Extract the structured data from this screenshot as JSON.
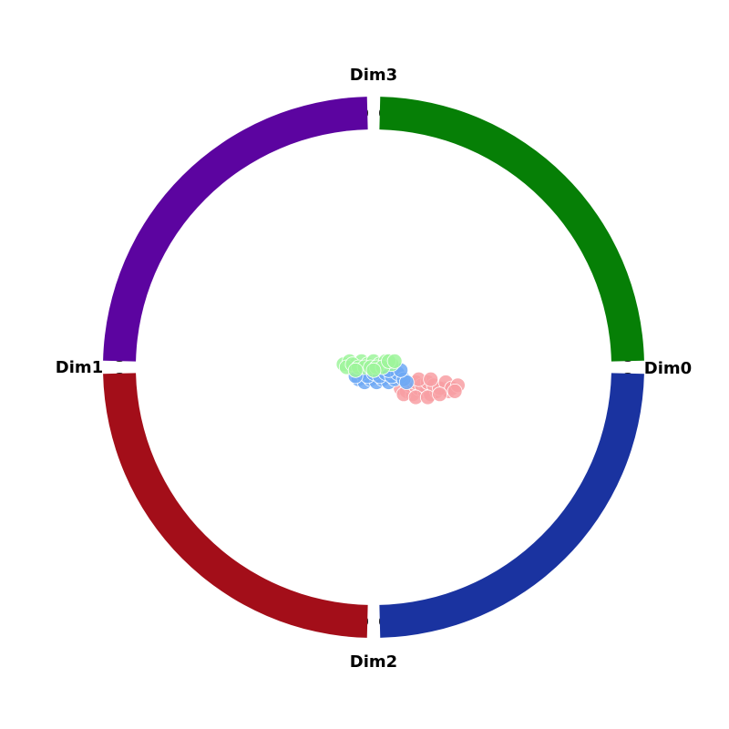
{
  "chart_data": {
    "type": "scatter",
    "title": "",
    "xlabel": "",
    "ylabel": "",
    "dimensions": [
      {
        "label": "Dim0",
        "color": "#067f06"
      },
      {
        "label": "Dim1",
        "color": "#5c04a0"
      },
      {
        "label": "Dim2",
        "color": "#a30e19"
      },
      {
        "label": "Dim3",
        "color": "#1a33a0"
      }
    ],
    "series": [
      {
        "color": "#f89fa3",
        "points": [
          [
            0.09,
            -0.07
          ],
          [
            0.11,
            -0.08
          ],
          [
            0.13,
            -0.09
          ],
          [
            0.15,
            -0.07
          ],
          [
            0.17,
            -0.08
          ],
          [
            0.19,
            -0.09
          ],
          [
            0.21,
            -0.08
          ],
          [
            0.23,
            -0.07
          ],
          [
            0.25,
            -0.08
          ],
          [
            0.12,
            -0.06
          ],
          [
            0.14,
            -0.05
          ],
          [
            0.16,
            -0.06
          ],
          [
            0.18,
            -0.05
          ],
          [
            0.2,
            -0.06
          ],
          [
            0.22,
            -0.07
          ],
          [
            0.24,
            -0.05
          ],
          [
            0.26,
            -0.07
          ],
          [
            0.1,
            -0.09
          ],
          [
            0.14,
            -0.1
          ],
          [
            0.18,
            -0.1
          ],
          [
            0.22,
            -0.09
          ],
          [
            0.28,
            -0.06
          ],
          [
            0.27,
            -0.08
          ],
          [
            0.15,
            -0.04
          ],
          [
            0.19,
            -0.04
          ]
        ]
      },
      {
        "color": "#6fa9f5",
        "points": [
          [
            -0.05,
            -0.04
          ],
          [
            -0.03,
            -0.05
          ],
          [
            -0.01,
            -0.04
          ],
          [
            0.01,
            -0.05
          ],
          [
            0.03,
            -0.04
          ],
          [
            0.05,
            -0.05
          ],
          [
            0.07,
            -0.04
          ],
          [
            0.09,
            -0.03
          ],
          [
            -0.04,
            -0.02
          ],
          [
            -0.02,
            -0.03
          ],
          [
            0.0,
            -0.02
          ],
          [
            0.02,
            -0.03
          ],
          [
            0.04,
            -0.02
          ],
          [
            0.06,
            -0.03
          ],
          [
            0.08,
            -0.02
          ],
          [
            0.1,
            -0.04
          ],
          [
            0.11,
            -0.05
          ],
          [
            -0.06,
            -0.03
          ],
          [
            0.05,
            -0.01
          ],
          [
            0.09,
            -0.01
          ]
        ]
      },
      {
        "color": "#9ef59b",
        "points": [
          [
            -0.1,
            0.01
          ],
          [
            -0.08,
            0.02
          ],
          [
            -0.06,
            0.01
          ],
          [
            -0.04,
            0.02
          ],
          [
            -0.02,
            0.01
          ],
          [
            0.0,
            0.02
          ],
          [
            0.02,
            0.01
          ],
          [
            0.04,
            0.02
          ],
          [
            0.06,
            0.01
          ],
          [
            -0.09,
            0.0
          ],
          [
            -0.07,
            0.01
          ],
          [
            -0.05,
            0.0
          ],
          [
            -0.03,
            0.0
          ],
          [
            -0.01,
            0.0
          ],
          [
            0.01,
            0.0
          ],
          [
            0.03,
            0.0
          ],
          [
            0.05,
            0.02
          ],
          [
            -0.06,
            -0.01
          ],
          [
            0.0,
            -0.01
          ],
          [
            0.07,
            0.02
          ]
        ]
      }
    ]
  }
}
